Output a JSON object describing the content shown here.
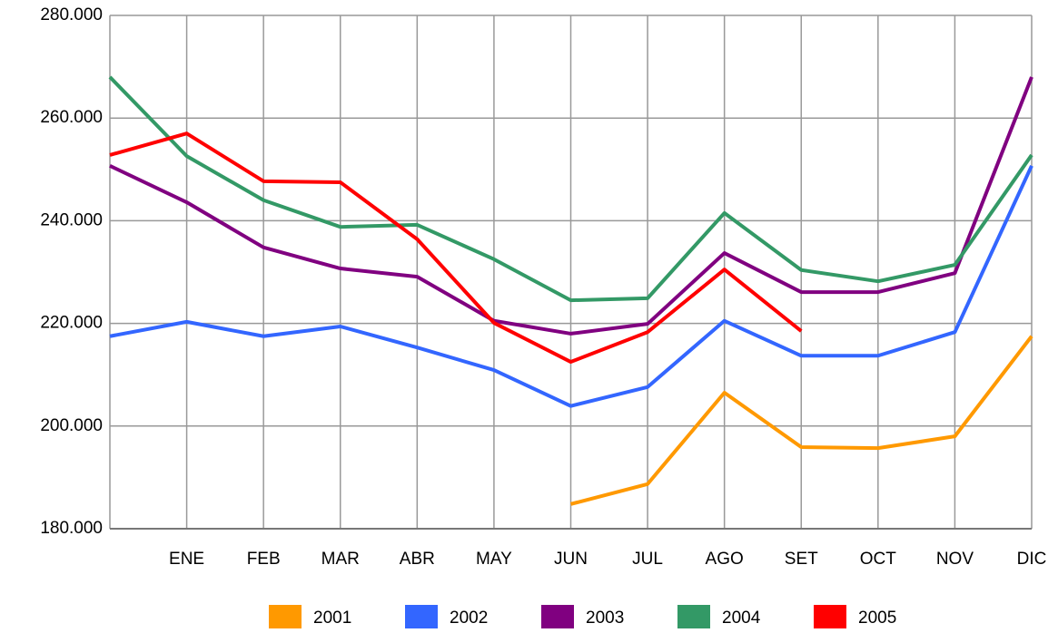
{
  "chart_data": {
    "type": "line",
    "categories": [
      null,
      "ENE",
      "FEB",
      "MAR",
      "ABR",
      "MAY",
      "JUN",
      "JUL",
      "AGO",
      "SET",
      "OCT",
      "NOV",
      "DIC"
    ],
    "ylim": [
      180000,
      280000
    ],
    "yticks": [
      {
        "value": 180000,
        "label": "180.000"
      },
      {
        "value": 200000,
        "label": "200.000"
      },
      {
        "value": 220000,
        "label": "220.000"
      },
      {
        "value": 240000,
        "label": "240.000"
      },
      {
        "value": 260000,
        "label": "260.000"
      },
      {
        "value": 280000,
        "label": "280.000"
      }
    ],
    "grid": true,
    "legend": "bottom",
    "series": [
      {
        "name": "2001",
        "color": "#ff9900",
        "values": [
          null,
          null,
          null,
          null,
          null,
          null,
          184800,
          188700,
          206500,
          195900,
          195700,
          198000,
          217500
        ]
      },
      {
        "name": "2002",
        "color": "#3366ff",
        "values": [
          217500,
          220300,
          217500,
          219400,
          215300,
          210900,
          203900,
          207600,
          220500,
          213700,
          213700,
          218300,
          250700
        ]
      },
      {
        "name": "2003",
        "color": "#800080",
        "values": [
          250700,
          243600,
          234800,
          230700,
          229100,
          220500,
          218000,
          219900,
          233700,
          226100,
          226100,
          229800,
          268000
        ]
      },
      {
        "name": "2004",
        "color": "#339966",
        "values": [
          268000,
          252600,
          244000,
          238800,
          239200,
          232500,
          224500,
          224900,
          241500,
          230400,
          228200,
          231400,
          252800
        ]
      },
      {
        "name": "2005",
        "color": "#ff0000",
        "values": [
          252800,
          257000,
          247700,
          247500,
          236400,
          220100,
          212500,
          218300,
          230500,
          218500,
          null,
          null,
          null
        ]
      }
    ]
  }
}
